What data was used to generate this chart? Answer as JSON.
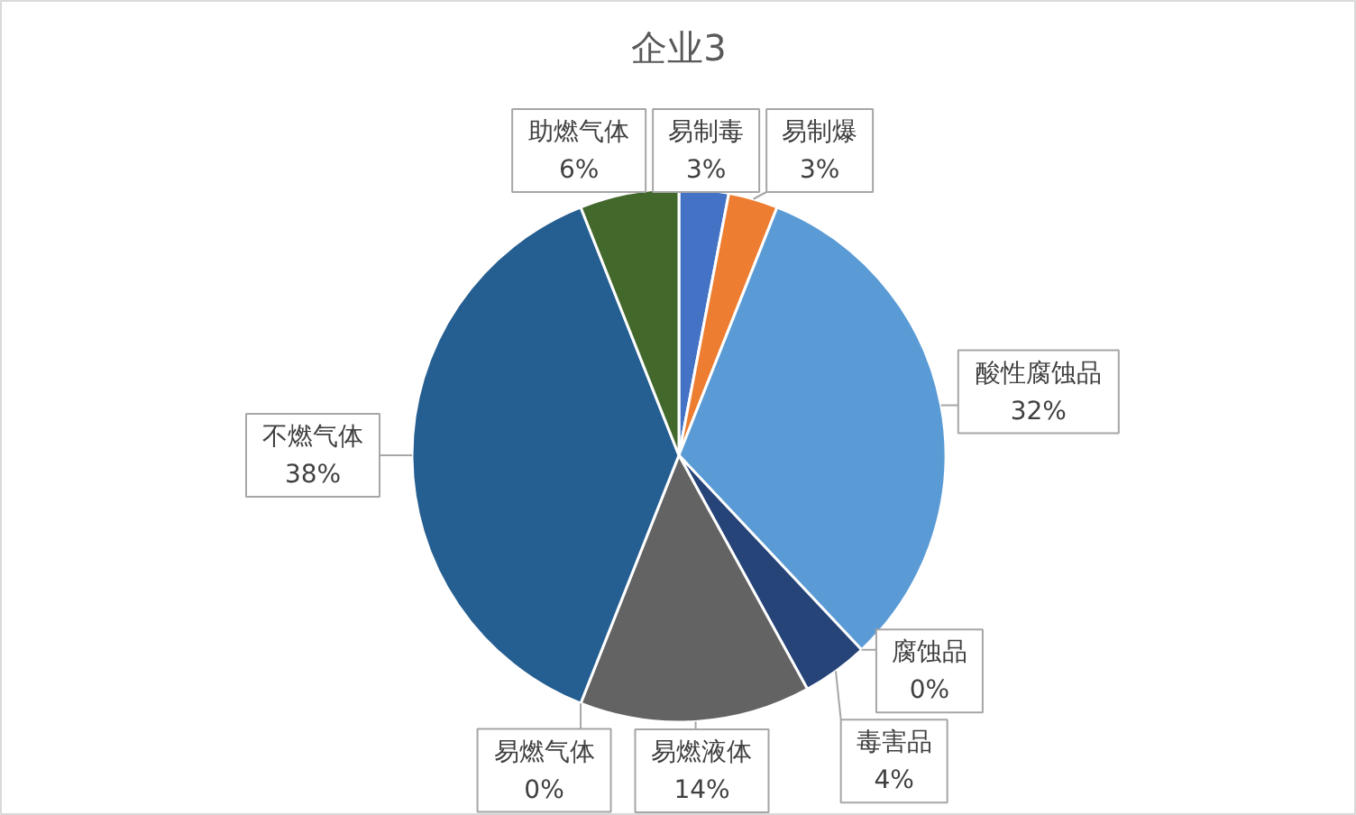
{
  "chart_data": {
    "type": "pie",
    "title": "企业3",
    "categories": [
      "易制毒",
      "易制爆",
      "酸性腐蚀品",
      "腐蚀品",
      "毒害品",
      "易燃液体",
      "易燃气体",
      "不燃气体",
      "助燃气体"
    ],
    "values": [
      3,
      3,
      32,
      0,
      4,
      14,
      0,
      38,
      6
    ],
    "value_labels": [
      "3%",
      "3%",
      "32%",
      "0%",
      "4%",
      "14%",
      "0%",
      "38%",
      "6%"
    ],
    "colors": [
      "#4472c4",
      "#ed7d31",
      "#5b9bd5",
      "#9e480e",
      "#264478",
      "#636363",
      "#997300",
      "#255e91",
      "#43682b"
    ]
  }
}
